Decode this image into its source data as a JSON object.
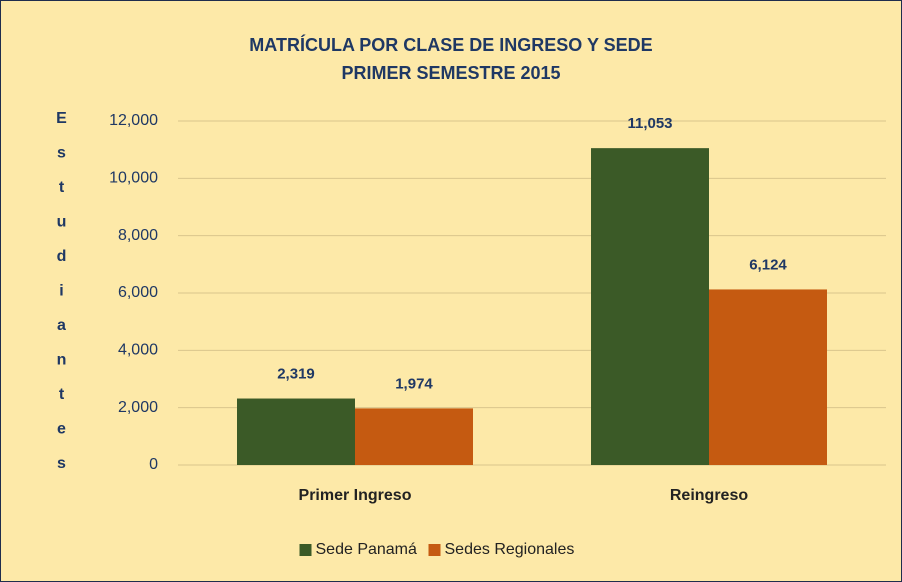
{
  "chart_data": {
    "type": "bar",
    "title": [
      "MATRÍCULA POR CLASE DE INGRESO Y SEDE",
      "PRIMER SEMESTRE 2015"
    ],
    "y_label": "Estudiantes",
    "categories": [
      "Primer Ingreso",
      "Reingreso"
    ],
    "series": [
      {
        "name": "Sede Panamá",
        "color": "#3b5a27",
        "values": [
          2319,
          11053
        ],
        "value_labels": [
          "2,319",
          "11,053"
        ]
      },
      {
        "name": "Sedes Regionales",
        "color": "#c55a11",
        "values": [
          1974,
          6124
        ],
        "value_labels": [
          "1,974",
          "6,124"
        ]
      }
    ],
    "ylim": [
      0,
      12000
    ],
    "yticks": [
      0,
      {
        "value": 2000,
        "label": "2,000"
      },
      {
        "value": 4000,
        "label": "4,000"
      },
      {
        "value": 6000,
        "label": "6,000"
      },
      {
        "value": 8000,
        "label": "8,000"
      },
      {
        "value": 10000,
        "label": "10,000"
      },
      {
        "value": 12000,
        "label": "12,000"
      }
    ],
    "grid": true,
    "legend": "bottom"
  }
}
